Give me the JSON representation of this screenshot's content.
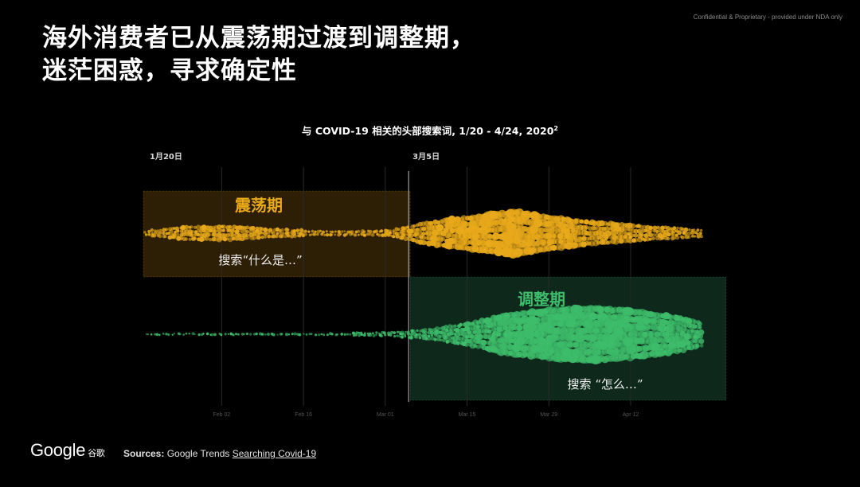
{
  "header": {
    "confidential": "Confidential & Proprietary - provided under NDA only",
    "title_line1": "海外消费者已从震荡期过渡到调整期，",
    "title_line2": "迷茫困惑，寻求确定性"
  },
  "colors": {
    "background": "#000000",
    "turbulence": "#e8a91a",
    "adjustment": "#3dbd6a",
    "turbulence_region": "#2f2106",
    "adjustment_region": "#0f2a1d"
  },
  "chart_data": {
    "type": "scatter",
    "title": "与 COVID-19 相关的头部搜索词, 1/20 - 4/24, 2020",
    "title_sup": "2",
    "x_range": [
      "1/20",
      "4/24"
    ],
    "markers": [
      {
        "label": "1月20日",
        "date": "1/20"
      },
      {
        "label": "3月5日",
        "date": "3/5"
      }
    ],
    "x_ticks": [
      "Feb 02",
      "Feb 16",
      "Mar 01",
      "Mar 15",
      "Mar 29",
      "Apr 12"
    ],
    "phases": [
      {
        "name": "震荡期",
        "annotation": "搜索“什么是…”",
        "color": "#e8a91a",
        "from": "1/20",
        "to": "3/5"
      },
      {
        "name": "调整期",
        "annotation": "搜索 “怎么…”",
        "color": "#3dbd6a",
        "from": "3/5",
        "to": "4/24"
      }
    ],
    "series": [
      {
        "description": "relative search volume, 什么是 queries (estimated band thickness)",
        "color": "#e8a91a",
        "x": [
          "1/20",
          "1/27",
          "2/03",
          "2/10",
          "2/17",
          "2/24",
          "3/02",
          "3/09",
          "3/16",
          "3/23",
          "3/30",
          "4/06",
          "4/13",
          "4/20",
          "4/24"
        ],
        "values": [
          8,
          20,
          22,
          14,
          9,
          7,
          10,
          35,
          50,
          64,
          46,
          33,
          24,
          16,
          12
        ]
      },
      {
        "description": "relative search volume, 怎么 queries (estimated band thickness)",
        "color": "#3dbd6a",
        "x": [
          "1/20",
          "1/27",
          "2/03",
          "2/10",
          "2/17",
          "2/24",
          "3/02",
          "3/09",
          "3/16",
          "3/23",
          "3/30",
          "4/06",
          "4/13",
          "4/20",
          "4/24"
        ],
        "values": [
          1,
          2,
          2,
          3,
          3,
          4,
          6,
          14,
          30,
          52,
          62,
          66,
          58,
          44,
          30
        ]
      }
    ]
  },
  "footer": {
    "logo": "Google",
    "logo_cn": "谷歌",
    "sources_label": "Sources:",
    "sources_text": " Google Trends ",
    "sources_link": "Searching Covid-19"
  }
}
